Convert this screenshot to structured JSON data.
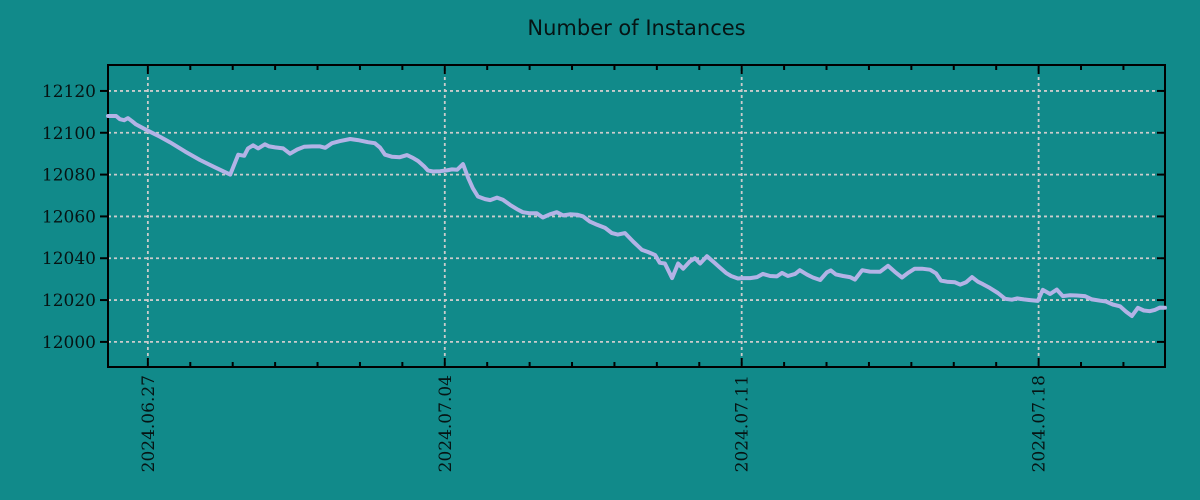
{
  "title": "Number of Instances",
  "colors": {
    "background": "#118a8a",
    "line": "#b3b3e6",
    "grid": "#cccccc",
    "frame": "#000000",
    "text": "#061414"
  },
  "chart_data": {
    "type": "line",
    "title": "Number of Instances",
    "xlabel": "",
    "ylabel": "",
    "legend": false,
    "grid": true,
    "x_axis": {
      "unit": "days since left edge (approx 2024.06.26)",
      "range": [
        0,
        24.92
      ],
      "major_ticks": [
        {
          "label": "2024.06.27",
          "d": 0.94
        },
        {
          "label": "2024.07.04",
          "d": 7.94
        },
        {
          "label": "2024.07.11",
          "d": 14.94
        },
        {
          "label": "2024.07.18",
          "d": 21.94
        }
      ],
      "minor_tick_first": 0.94,
      "minor_tick_step": 1,
      "minor_tick_count": 24
    },
    "y_axis": {
      "range": [
        11988,
        12132.4
      ],
      "ticks": [
        12000,
        12020,
        12040,
        12060,
        12080,
        12100,
        12120
      ]
    },
    "series": [
      {
        "name": "instances",
        "color": "#b3b3e6",
        "points": [
          [
            0.0,
            12108
          ],
          [
            0.19,
            12108
          ],
          [
            0.28,
            12106.5
          ],
          [
            0.38,
            12106
          ],
          [
            0.47,
            12107
          ],
          [
            0.57,
            12105.5
          ],
          [
            0.66,
            12104
          ],
          [
            0.94,
            12101
          ],
          [
            1.23,
            12098
          ],
          [
            1.46,
            12095.5
          ],
          [
            1.82,
            12091
          ],
          [
            2.17,
            12087
          ],
          [
            2.52,
            12083.5
          ],
          [
            2.88,
            12080
          ],
          [
            3.07,
            12089.5
          ],
          [
            3.21,
            12089
          ],
          [
            3.3,
            12092.5
          ],
          [
            3.42,
            12094
          ],
          [
            3.54,
            12092.5
          ],
          [
            3.7,
            12094.5
          ],
          [
            3.8,
            12093.5
          ],
          [
            3.94,
            12093
          ],
          [
            4.13,
            12092.5
          ],
          [
            4.29,
            12090
          ],
          [
            4.46,
            12092
          ],
          [
            4.62,
            12093.3
          ],
          [
            4.81,
            12093.5
          ],
          [
            5.0,
            12093.5
          ],
          [
            5.12,
            12092.8
          ],
          [
            5.28,
            12095
          ],
          [
            5.47,
            12096
          ],
          [
            5.71,
            12097
          ],
          [
            5.89,
            12096.5
          ],
          [
            6.13,
            12095.5
          ],
          [
            6.29,
            12095
          ],
          [
            6.41,
            12093
          ],
          [
            6.53,
            12089.5
          ],
          [
            6.7,
            12088.5
          ],
          [
            6.88,
            12088.3
          ],
          [
            7.05,
            12089.3
          ],
          [
            7.19,
            12088
          ],
          [
            7.31,
            12086.5
          ],
          [
            7.45,
            12084
          ],
          [
            7.54,
            12082
          ],
          [
            7.66,
            12081.5
          ],
          [
            7.83,
            12081.6
          ],
          [
            7.99,
            12082
          ],
          [
            8.11,
            12082.5
          ],
          [
            8.23,
            12082.3
          ],
          [
            8.37,
            12085
          ],
          [
            8.49,
            12078.5
          ],
          [
            8.6,
            12073.5
          ],
          [
            8.72,
            12069.5
          ],
          [
            8.89,
            12068.3
          ],
          [
            9.01,
            12067.8
          ],
          [
            9.17,
            12069
          ],
          [
            9.31,
            12068
          ],
          [
            9.48,
            12065.5
          ],
          [
            9.64,
            12063.5
          ],
          [
            9.78,
            12062
          ],
          [
            9.95,
            12061.5
          ],
          [
            10.11,
            12061.5
          ],
          [
            10.25,
            12059.5
          ],
          [
            10.42,
            12061
          ],
          [
            10.58,
            12062
          ],
          [
            10.73,
            12060.5
          ],
          [
            10.89,
            12061
          ],
          [
            11.06,
            12060.8
          ],
          [
            11.2,
            12060
          ],
          [
            11.36,
            12057.5
          ],
          [
            11.53,
            12056
          ],
          [
            11.72,
            12054.5
          ],
          [
            11.88,
            12052
          ],
          [
            12.02,
            12051.3
          ],
          [
            12.19,
            12052
          ],
          [
            12.38,
            12048
          ],
          [
            12.59,
            12044
          ],
          [
            12.73,
            12043
          ],
          [
            12.9,
            12041.5
          ],
          [
            13.01,
            12037.8
          ],
          [
            13.13,
            12037.5
          ],
          [
            13.3,
            12030.5
          ],
          [
            13.44,
            12037.5
          ],
          [
            13.56,
            12035
          ],
          [
            13.72,
            12038.5
          ],
          [
            13.84,
            12040
          ],
          [
            13.96,
            12037.5
          ],
          [
            14.12,
            12041
          ],
          [
            14.29,
            12038
          ],
          [
            14.43,
            12035.5
          ],
          [
            14.57,
            12033
          ],
          [
            14.69,
            12031.5
          ],
          [
            14.85,
            12030.3
          ],
          [
            14.97,
            12030.5
          ],
          [
            15.14,
            12030.5
          ],
          [
            15.3,
            12031
          ],
          [
            15.44,
            12032.5
          ],
          [
            15.61,
            12031.5
          ],
          [
            15.77,
            12031.3
          ],
          [
            15.89,
            12033
          ],
          [
            16.03,
            12031.5
          ],
          [
            16.2,
            12032.5
          ],
          [
            16.31,
            12034.3
          ],
          [
            16.48,
            12032.2
          ],
          [
            16.62,
            12030.8
          ],
          [
            16.79,
            12029.6
          ],
          [
            16.95,
            12033.3
          ],
          [
            17.04,
            12034.2
          ],
          [
            17.16,
            12032.3
          ],
          [
            17.33,
            12031.5
          ],
          [
            17.49,
            12031
          ],
          [
            17.61,
            12029.8
          ],
          [
            17.78,
            12034.3
          ],
          [
            17.96,
            12033.6
          ],
          [
            18.2,
            12033.5
          ],
          [
            18.39,
            12036.4
          ],
          [
            18.55,
            12033.5
          ],
          [
            18.72,
            12030.8
          ],
          [
            18.86,
            12033
          ],
          [
            19.02,
            12035
          ],
          [
            19.19,
            12035
          ],
          [
            19.38,
            12034.5
          ],
          [
            19.52,
            12032.8
          ],
          [
            19.64,
            12029.3
          ],
          [
            19.78,
            12028.8
          ],
          [
            19.97,
            12028.5
          ],
          [
            20.09,
            12027.4
          ],
          [
            20.23,
            12028.5
          ],
          [
            20.37,
            12031
          ],
          [
            20.51,
            12028.8
          ],
          [
            20.63,
            12027.6
          ],
          [
            20.79,
            12025.8
          ],
          [
            20.98,
            12023.4
          ],
          [
            21.15,
            12020.6
          ],
          [
            21.31,
            12020.2
          ],
          [
            21.43,
            12020.8
          ],
          [
            21.59,
            12020.3
          ],
          [
            21.74,
            12020
          ],
          [
            21.92,
            12019.6
          ],
          [
            22.04,
            12024.9
          ],
          [
            22.21,
            12022.9
          ],
          [
            22.37,
            12025
          ],
          [
            22.51,
            12021.9
          ],
          [
            22.68,
            12022.3
          ],
          [
            22.84,
            12022.2
          ],
          [
            23.03,
            12021.9
          ],
          [
            23.2,
            12020.3
          ],
          [
            23.39,
            12019.7
          ],
          [
            23.53,
            12019.3
          ],
          [
            23.69,
            12017.9
          ],
          [
            23.86,
            12017
          ],
          [
            24.0,
            12014.5
          ],
          [
            24.14,
            12012.4
          ],
          [
            24.28,
            12016.3
          ],
          [
            24.42,
            12015
          ],
          [
            24.56,
            12014.7
          ],
          [
            24.68,
            12015.3
          ],
          [
            24.8,
            12016.4
          ],
          [
            24.92,
            12016.3
          ]
        ]
      }
    ]
  }
}
